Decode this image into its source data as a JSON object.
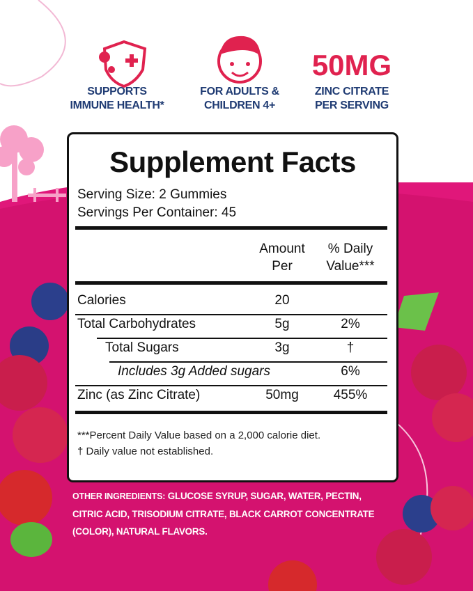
{
  "badges": [
    {
      "lines": [
        "SUPPORTS",
        "IMMUNE HEALTH*"
      ]
    },
    {
      "lines": [
        "FOR ADULTS &",
        "CHILDREN 4+"
      ]
    },
    {
      "headline": "50MG",
      "lines": [
        "ZINC CITRATE",
        "PER SERVING"
      ]
    }
  ],
  "facts": {
    "title": "Supplement Facts",
    "serving_size": "Serving Size: 2 Gummies",
    "servings_per_container": "Servings Per Container: 45",
    "header": {
      "amount": [
        "Amount",
        "Per"
      ],
      "daily_value": [
        "% Daily",
        "Value***"
      ]
    },
    "rows": [
      {
        "name": "Calories",
        "amount": "20"
      },
      {
        "name": "Total Carbohydrates",
        "amount": "5g",
        "daily_value": "2%"
      },
      {
        "name": "Total Sugars",
        "amount": "3g",
        "daily_value": "†"
      },
      {
        "name": "Includes 3g Added sugars",
        "daily_value": "6%"
      },
      {
        "name": "Zinc (as Zinc Citrate)",
        "amount": "50mg",
        "daily_value": "455%"
      }
    ],
    "footnotes": [
      "***Percent Daily Value based on a 2,000 calorie diet.",
      "† Daily value not established."
    ]
  },
  "ingredients": {
    "label": "OTHER INGREDIENTS:",
    "text": "GLUCOSE SYRUP, SUGAR, WATER, PECTIN, CITRIC ACID, TRISODIUM CITRATE, BLACK CARROT CONCENTRATE (COLOR), NATURAL FLAVORS."
  }
}
